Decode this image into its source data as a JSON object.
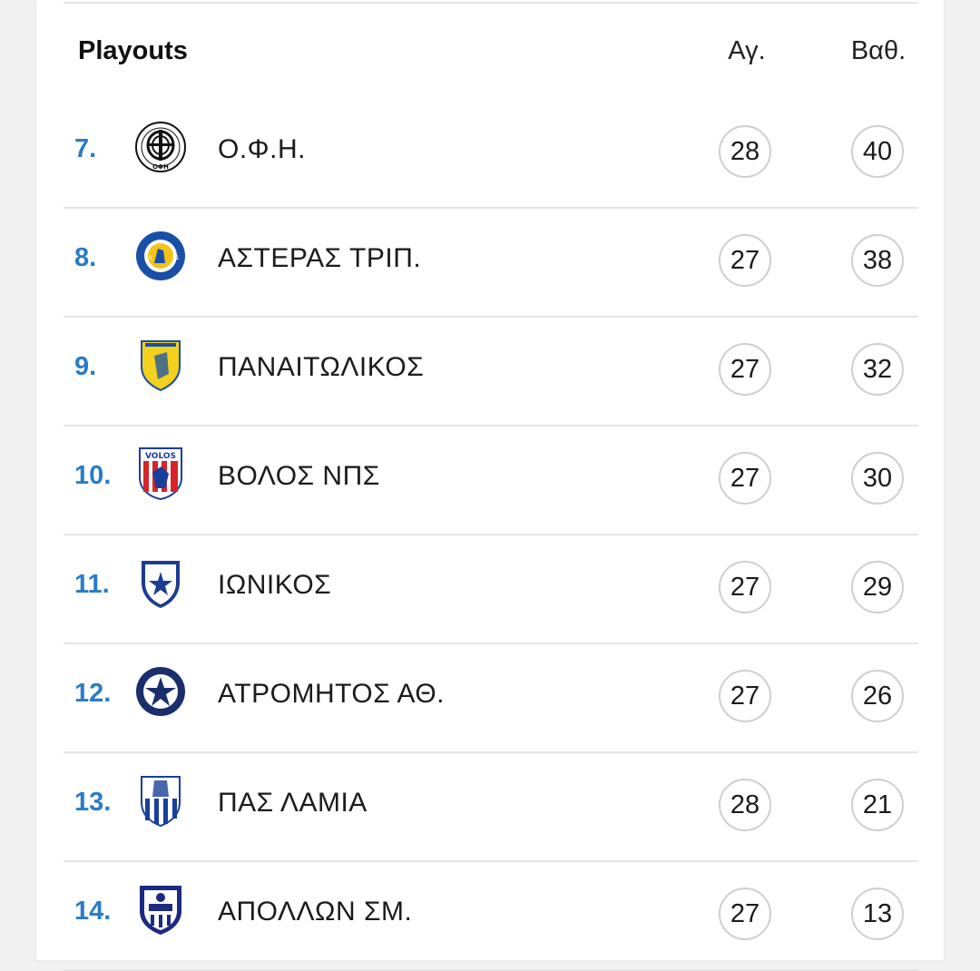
{
  "section": {
    "title": "Playouts",
    "col_games": "Αγ.",
    "col_points": "Βαθ."
  },
  "rows": [
    {
      "position": "7.",
      "team": "Ο.Φ.Η.",
      "games": "28",
      "points": "40",
      "crest": "ofi-crest-icon"
    },
    {
      "position": "8.",
      "team": "ΑΣΤΕΡΑΣ ΤΡΙΠ.",
      "games": "27",
      "points": "38",
      "crest": "asteras-crest-icon"
    },
    {
      "position": "9.",
      "team": "ΠΑΝΑΙΤΩΛΙΚΟΣ",
      "games": "27",
      "points": "32",
      "crest": "panetolikos-crest-icon"
    },
    {
      "position": "10.",
      "team": "ΒΟΛΟΣ ΝΠΣ",
      "games": "27",
      "points": "30",
      "crest": "volos-crest-icon"
    },
    {
      "position": "11.",
      "team": "ΙΩΝΙΚΟΣ",
      "games": "27",
      "points": "29",
      "crest": "ionikos-crest-icon"
    },
    {
      "position": "12.",
      "team": "ΑΤΡΟΜΗΤΟΣ ΑΘ.",
      "games": "27",
      "points": "26",
      "crest": "atromitos-crest-icon"
    },
    {
      "position": "13.",
      "team": "ΠΑΣ ΛΑΜΙΑ",
      "games": "28",
      "points": "21",
      "crest": "lamia-crest-icon"
    },
    {
      "position": "14.",
      "team": "ΑΠΟΛΛΩΝ ΣΜ.",
      "games": "27",
      "points": "13",
      "crest": "apollon-crest-icon"
    }
  ],
  "colors": {
    "accent": "#2a7cc7",
    "divider": "#e4e4e4",
    "badge_border": "#cfcfcf"
  }
}
